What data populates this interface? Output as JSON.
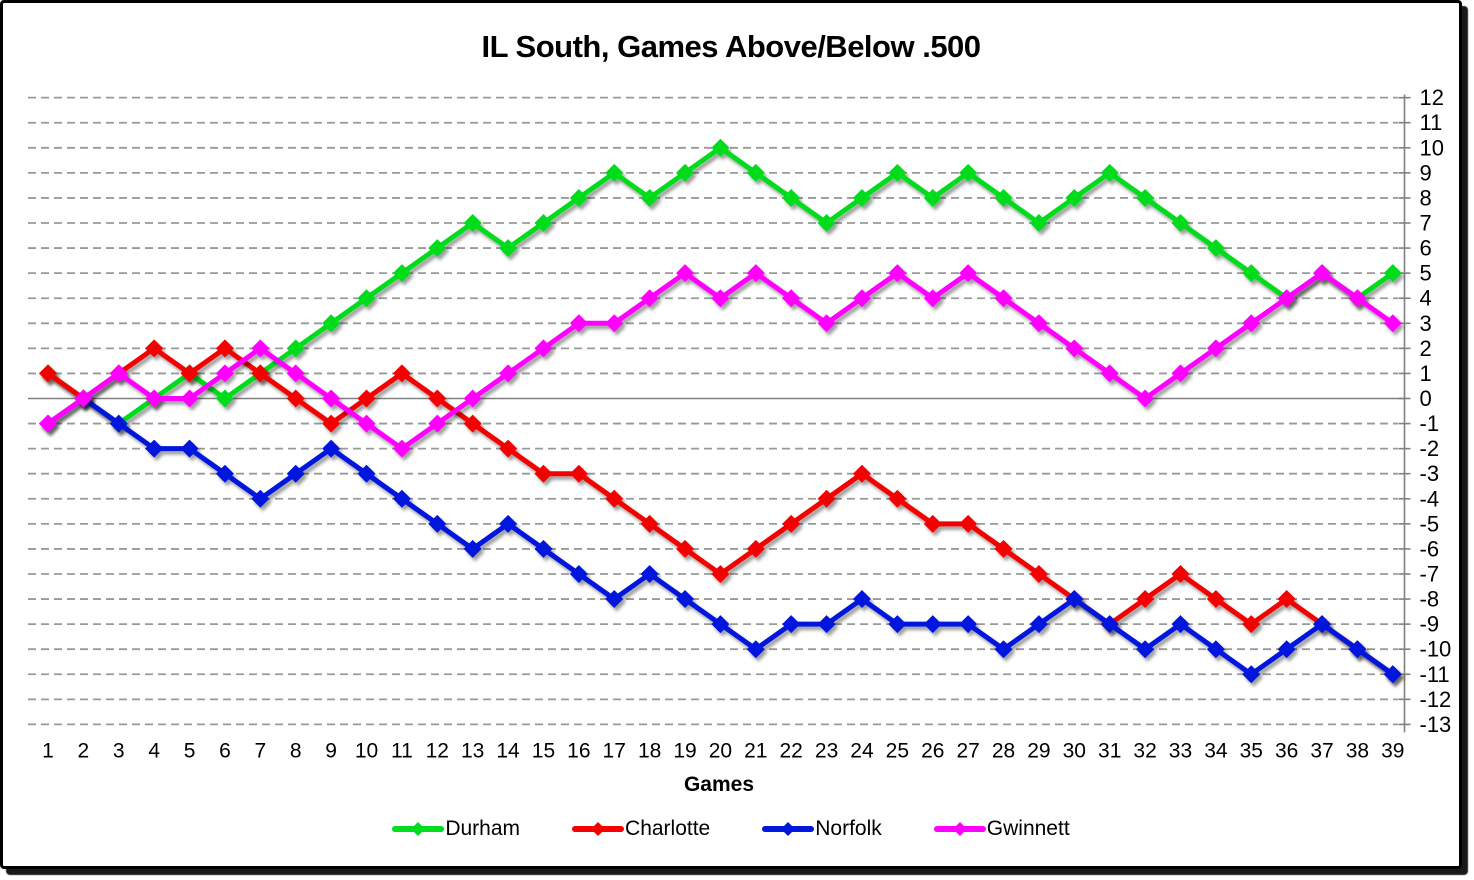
{
  "title": "IL South, Games Above/Below .500",
  "x_axis_title": "Games",
  "chart_data": {
    "type": "line",
    "title": "IL South, Games Above/Below .500",
    "xlabel": "Games",
    "ylabel": "",
    "ylim": [
      -13,
      12
    ],
    "ytick_step": 1,
    "grid": "horizontal-dashed",
    "zero_line": "solid",
    "y_axis_side": "right",
    "legend_position": "bottom",
    "marker": "diamond",
    "categories": [
      1,
      2,
      3,
      4,
      5,
      6,
      7,
      8,
      9,
      10,
      11,
      12,
      13,
      14,
      15,
      16,
      17,
      18,
      19,
      20,
      21,
      22,
      23,
      24,
      25,
      26,
      27,
      28,
      29,
      30,
      31,
      32,
      33,
      34,
      35,
      36,
      37,
      38,
      39
    ],
    "series": [
      {
        "name": "Durham",
        "color": "#00dc1e",
        "values": [
          1,
          0,
          -1,
          0,
          1,
          0,
          1,
          2,
          3,
          4,
          5,
          6,
          7,
          6,
          7,
          8,
          9,
          8,
          9,
          10,
          9,
          8,
          7,
          8,
          9,
          8,
          9,
          8,
          7,
          8,
          9,
          8,
          7,
          6,
          5,
          4,
          5,
          4,
          5
        ]
      },
      {
        "name": "Charlotte",
        "color": "#f40000",
        "values": [
          1,
          0,
          1,
          2,
          1,
          2,
          1,
          0,
          -1,
          0,
          1,
          0,
          -1,
          -2,
          -3,
          -3,
          -4,
          -5,
          -6,
          -7,
          -6,
          -5,
          -4,
          -3,
          -4,
          -5,
          -5,
          -6,
          -7,
          -8,
          -9,
          -8,
          -7,
          -8,
          -9,
          -8,
          -9,
          -10,
          -11
        ]
      },
      {
        "name": "Norfolk",
        "color": "#0018dc",
        "values": [
          -1,
          0,
          -1,
          -2,
          -2,
          -3,
          -4,
          -3,
          -2,
          -3,
          -4,
          -5,
          -6,
          -5,
          -6,
          -7,
          -8,
          -7,
          -8,
          -9,
          -10,
          -9,
          -9,
          -8,
          -9,
          -9,
          -9,
          -10,
          -9,
          -8,
          -9,
          -10,
          -9,
          -10,
          -11,
          -10,
          -9,
          -10,
          -11
        ]
      },
      {
        "name": "Gwinnett",
        "color": "#ff00ff",
        "values": [
          -1,
          0,
          1,
          0,
          0,
          1,
          2,
          1,
          0,
          -1,
          -2,
          -1,
          0,
          1,
          2,
          3,
          3,
          4,
          5,
          4,
          5,
          4,
          3,
          4,
          5,
          4,
          5,
          4,
          3,
          2,
          1,
          0,
          1,
          2,
          3,
          4,
          5,
          4,
          3
        ]
      }
    ],
    "grid_color": "#999999",
    "zero_line_color": "#808080",
    "axis_line_color": "#808080",
    "tick_label_color": "#000000"
  }
}
